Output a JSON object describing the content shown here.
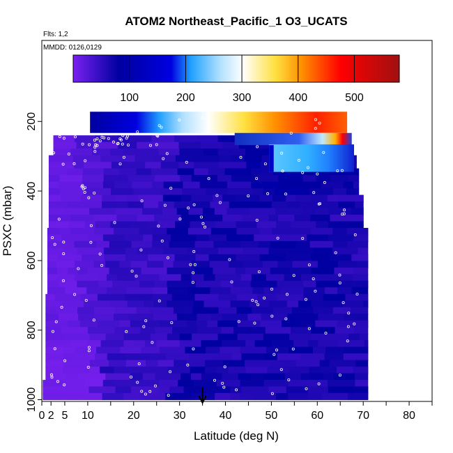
{
  "chart_data": {
    "type": "heatmap",
    "title": "ATOM2 Northeast_Pacific_1 O3_UCATS",
    "annotations": [
      "Flts: 1,2",
      "MMDD: 0126,0129"
    ],
    "xlabel": "Latitude (deg N)",
    "ylabel": "PSXC (mbar)",
    "xlim": [
      0,
      85
    ],
    "ylim": [
      1000,
      0
    ],
    "y_scale": "linear-inverted",
    "x_ticks": [
      0,
      2,
      5,
      10,
      20,
      30,
      40,
      50,
      60,
      70,
      80
    ],
    "x_tick_labels": [
      "0",
      "2",
      "5",
      "10",
      "20",
      "30",
      "40",
      "50",
      "60",
      "70",
      "80"
    ],
    "x_minor_ticks": [
      15,
      25,
      35,
      45,
      55,
      65,
      75,
      85
    ],
    "y_ticks": [
      200,
      400,
      600,
      800,
      1000
    ],
    "y_tick_labels": [
      "200",
      "400",
      "600",
      "800",
      "1000"
    ],
    "colorbar": {
      "range": [
        0,
        580
      ],
      "ticks": [
        100,
        200,
        300,
        400,
        500
      ],
      "tick_labels": [
        "100",
        "200",
        "300",
        "400",
        "500"
      ],
      "colors": [
        "#7a20f0",
        "#0000a0",
        "#1fa0ff",
        "#ffffff",
        "#ffd000",
        "#ff0000",
        "#a01010"
      ]
    },
    "marker": {
      "type": "arrow",
      "x": 35,
      "y": 1000,
      "color": "#000000"
    },
    "field_regions": [
      {
        "lat": [
          0,
          12
        ],
        "p": [
          240,
          1000
        ],
        "o3": 10
      },
      {
        "lat": [
          12,
          30
        ],
        "p": [
          240,
          1000
        ],
        "o3": 40
      },
      {
        "lat": [
          30,
          55
        ],
        "p": [
          240,
          1000
        ],
        "o3": 55
      },
      {
        "lat": [
          55,
          71
        ],
        "p": [
          300,
          1000
        ],
        "o3": 60
      },
      {
        "lat": [
          10,
          67
        ],
        "p": [
          170,
          235
        ],
        "o3": 280
      },
      {
        "lat": [
          49,
          68
        ],
        "p": [
          265,
          345
        ],
        "o3": 190
      }
    ]
  }
}
